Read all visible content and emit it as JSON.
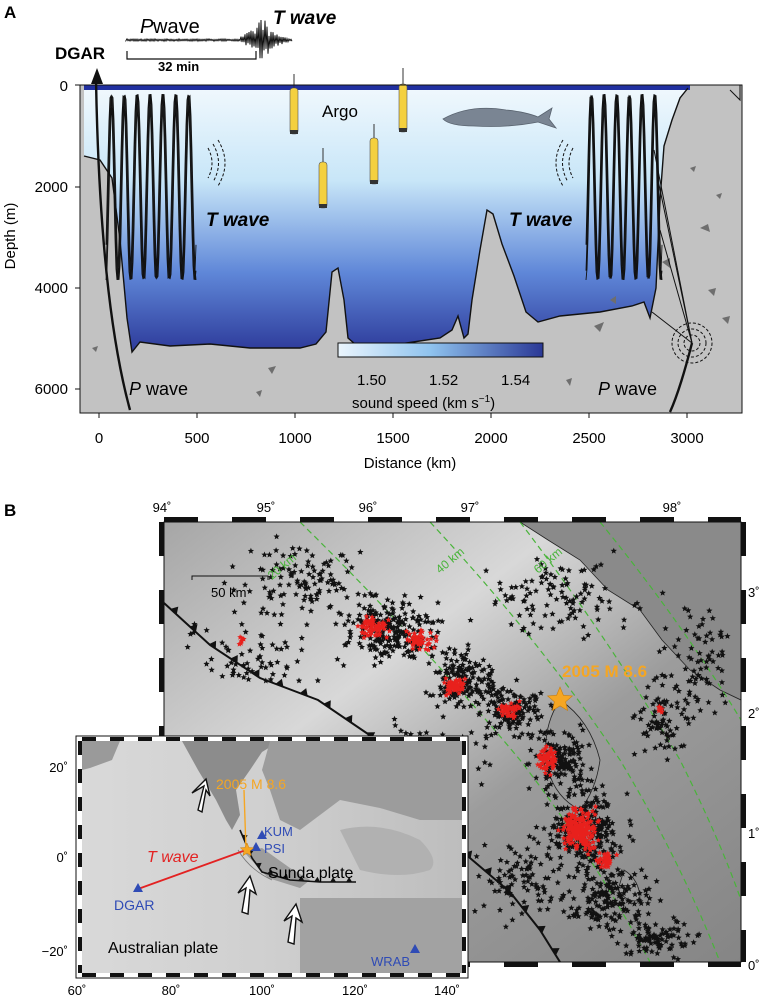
{
  "panel_a": {
    "letter": "A",
    "station": "DGAR",
    "seismogram": {
      "p_label": "P",
      "p_suffix": " wave",
      "t_label": "T wave",
      "scale_label": "32 min"
    },
    "argo_label": "Argo",
    "t_wave_left": "T wave",
    "t_wave_right": "T wave",
    "p_wave_left": {
      "p": "P",
      "rest": " wave"
    },
    "p_wave_right": {
      "p": "P",
      "rest": " wave"
    },
    "y_axis_label": "Depth (m)",
    "y_ticks": [
      "0",
      "2000",
      "4000",
      "6000"
    ],
    "x_axis_label": "Distance (km)",
    "x_ticks": [
      "0",
      "500",
      "1000",
      "1500",
      "2000",
      "2500",
      "3000"
    ],
    "colorbar": {
      "ticks": [
        "1.50",
        "1.52",
        "1.54"
      ],
      "label": "sound speed (km s",
      "label_sup": "−1",
      "label_end": ")",
      "colors": [
        "#eaf5fd",
        "#2a3896"
      ]
    },
    "colors": {
      "water_top": "#f0f8fd",
      "water_bottom": "#2d3a9a",
      "sea_surface": "#2130a0",
      "rock": "#c2c2c2"
    }
  },
  "panel_b": {
    "letter": "B",
    "top_ticks": [
      "94˚",
      "95˚",
      "96˚",
      "97˚",
      "98˚"
    ],
    "right_ticks": [
      "3˚",
      "2˚",
      "1˚",
      "0˚"
    ],
    "scalebar": "50 km",
    "contours": [
      "20 km",
      "40 km",
      "60 km"
    ],
    "epicenter": "2005 M 8.6",
    "colors": {
      "red_stars": "#e8201c",
      "black_stars": "#111111",
      "contour": "#49b43a",
      "epicenter": "#f5a623"
    },
    "inset": {
      "epicenter": "2005 M 8.6",
      "t_wave": "T wave",
      "stations": [
        "DGAR",
        "KUM",
        "PSI",
        "WRAB"
      ],
      "sunda": "Sunda plate",
      "australian": "Australian plate",
      "y_ticks": [
        "20˚",
        "0˚",
        "−20˚"
      ],
      "x_ticks": [
        "60˚",
        "80˚",
        "100˚",
        "120˚",
        "140˚"
      ],
      "colors": {
        "station": "#2f4bb5",
        "tpath": "#e32222"
      }
    }
  }
}
